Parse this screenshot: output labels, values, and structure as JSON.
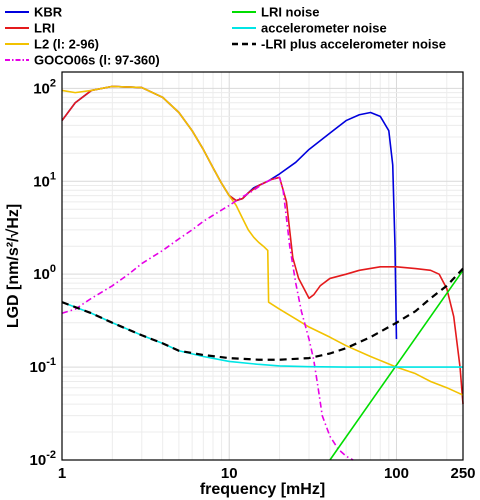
{
  "chart_data": {
    "type": "line",
    "xlabel": "frequency [mHz]",
    "ylabel": "LGD [nm/s²/√Hz]",
    "x_scale": "log",
    "y_scale": "log",
    "xlim": [
      1,
      250
    ],
    "ylim": [
      0.01,
      150
    ],
    "grid": true,
    "x_ticks": [
      {
        "value": 1,
        "label": "1"
      },
      {
        "value": 10,
        "label": "10"
      },
      {
        "value": 100,
        "label": "100"
      },
      {
        "value": 250,
        "label": "250"
      }
    ],
    "y_ticks": [
      {
        "value": 0.01,
        "base": "10",
        "exp": "-2"
      },
      {
        "value": 0.1,
        "base": "10",
        "exp": "-1"
      },
      {
        "value": 1,
        "base": "10",
        "exp": "0"
      },
      {
        "value": 10,
        "base": "10",
        "exp": "1"
      },
      {
        "value": 100,
        "base": "10",
        "exp": "2"
      }
    ],
    "series": [
      {
        "name": "KBR",
        "color": "#0000dd",
        "dash": "solid",
        "points": [
          [
            1,
            45
          ],
          [
            1.2,
            70
          ],
          [
            1.5,
            95
          ],
          [
            2,
            105
          ],
          [
            3,
            102
          ],
          [
            4,
            80
          ],
          [
            5,
            55
          ],
          [
            6,
            35
          ],
          [
            7,
            22
          ],
          [
            8,
            14
          ],
          [
            9,
            9.5
          ],
          [
            10,
            7
          ],
          [
            11,
            6.2
          ],
          [
            12,
            6.5
          ],
          [
            13,
            7.5
          ],
          [
            14,
            8.5
          ],
          [
            15,
            9
          ],
          [
            17,
            10
          ],
          [
            20,
            12
          ],
          [
            25,
            16
          ],
          [
            30,
            22
          ],
          [
            40,
            33
          ],
          [
            50,
            45
          ],
          [
            60,
            52
          ],
          [
            70,
            55
          ],
          [
            80,
            50
          ],
          [
            90,
            35
          ],
          [
            95,
            15
          ],
          [
            98,
            2
          ],
          [
            100,
            0.2
          ]
        ]
      },
      {
        "name": "LRI",
        "color": "#e41a1c",
        "dash": "solid",
        "points": [
          [
            1,
            45
          ],
          [
            1.2,
            70
          ],
          [
            1.5,
            95
          ],
          [
            2,
            105
          ],
          [
            3,
            102
          ],
          [
            4,
            80
          ],
          [
            5,
            55
          ],
          [
            6,
            35
          ],
          [
            7,
            22
          ],
          [
            8,
            14
          ],
          [
            9,
            9.5
          ],
          [
            10,
            7
          ],
          [
            11,
            6.2
          ],
          [
            12,
            6.5
          ],
          [
            13,
            7.5
          ],
          [
            15,
            9
          ],
          [
            18,
            10.5
          ],
          [
            20,
            11
          ],
          [
            22,
            6
          ],
          [
            24,
            1.5
          ],
          [
            26,
            0.9
          ],
          [
            28,
            0.7
          ],
          [
            30,
            0.55
          ],
          [
            32,
            0.6
          ],
          [
            35,
            0.75
          ],
          [
            40,
            0.9
          ],
          [
            50,
            1.0
          ],
          [
            60,
            1.1
          ],
          [
            80,
            1.2
          ],
          [
            100,
            1.2
          ],
          [
            130,
            1.15
          ],
          [
            160,
            1.1
          ],
          [
            180,
            1.0
          ],
          [
            200,
            0.7
          ],
          [
            220,
            0.35
          ],
          [
            240,
            0.1
          ],
          [
            250,
            0.04
          ]
        ]
      },
      {
        "name": "L2 (l: 2-96)",
        "color": "#f2c200",
        "dash": "solid",
        "points": [
          [
            1,
            95
          ],
          [
            1.2,
            90
          ],
          [
            1.5,
            95
          ],
          [
            2,
            105
          ],
          [
            3,
            102
          ],
          [
            4,
            80
          ],
          [
            5,
            55
          ],
          [
            6,
            35
          ],
          [
            7,
            22
          ],
          [
            8,
            14
          ],
          [
            9,
            9.5
          ],
          [
            10,
            7
          ],
          [
            11,
            5.5
          ],
          [
            12,
            4
          ],
          [
            13,
            3
          ],
          [
            14,
            2.5
          ],
          [
            15,
            2.2
          ],
          [
            16,
            2.0
          ],
          [
            17,
            1.8
          ],
          [
            17.2,
            0.5
          ],
          [
            20,
            0.42
          ],
          [
            25,
            0.33
          ],
          [
            30,
            0.27
          ],
          [
            40,
            0.21
          ],
          [
            50,
            0.17
          ],
          [
            70,
            0.13
          ],
          [
            100,
            0.1
          ],
          [
            130,
            0.085
          ],
          [
            160,
            0.07
          ],
          [
            200,
            0.06
          ],
          [
            250,
            0.05
          ]
        ]
      },
      {
        "name": "GOCO06s (l: 97-360)",
        "color": "#e600e6",
        "dash": "dashdot",
        "points": [
          [
            1,
            0.38
          ],
          [
            1.2,
            0.42
          ],
          [
            1.5,
            0.55
          ],
          [
            2,
            0.75
          ],
          [
            2.5,
            1.0
          ],
          [
            3,
            1.3
          ],
          [
            4,
            1.8
          ],
          [
            5,
            2.4
          ],
          [
            6,
            3.0
          ],
          [
            7,
            3.7
          ],
          [
            8,
            4.3
          ],
          [
            10,
            5.5
          ],
          [
            12,
            6.8
          ],
          [
            14,
            8.0
          ],
          [
            16,
            9.5
          ],
          [
            18,
            10.5
          ],
          [
            20,
            11
          ],
          [
            21,
            8
          ],
          [
            22,
            4
          ],
          [
            23,
            2
          ],
          [
            25,
            0.8
          ],
          [
            27,
            0.4
          ],
          [
            30,
            0.2
          ],
          [
            32,
            0.12
          ],
          [
            34,
            0.06
          ],
          [
            36,
            0.03
          ],
          [
            40,
            0.018
          ],
          [
            45,
            0.013
          ],
          [
            50,
            0.011
          ],
          [
            55,
            0.01
          ]
        ]
      },
      {
        "name": "LRI noise",
        "color": "#00dd00",
        "dash": "solid",
        "points": [
          [
            40,
            0.01
          ],
          [
            250,
            1.1
          ]
        ]
      },
      {
        "name": "accelerometer noise",
        "color": "#00e5e5",
        "dash": "solid",
        "points": [
          [
            1,
            0.5
          ],
          [
            1.5,
            0.38
          ],
          [
            2,
            0.3
          ],
          [
            3,
            0.22
          ],
          [
            4,
            0.18
          ],
          [
            5,
            0.15
          ],
          [
            7,
            0.13
          ],
          [
            10,
            0.115
          ],
          [
            15,
            0.107
          ],
          [
            20,
            0.103
          ],
          [
            30,
            0.101
          ],
          [
            50,
            0.1
          ],
          [
            100,
            0.1
          ],
          [
            250,
            0.1
          ]
        ]
      },
      {
        "name": "-LRI plus accelerometer noise",
        "color": "#000000",
        "dash": "dashed",
        "points": [
          [
            1,
            0.5
          ],
          [
            1.5,
            0.38
          ],
          [
            2,
            0.3
          ],
          [
            3,
            0.22
          ],
          [
            4,
            0.18
          ],
          [
            5,
            0.15
          ],
          [
            7,
            0.135
          ],
          [
            10,
            0.125
          ],
          [
            15,
            0.12
          ],
          [
            20,
            0.12
          ],
          [
            30,
            0.125
          ],
          [
            40,
            0.14
          ],
          [
            50,
            0.16
          ],
          [
            70,
            0.21
          ],
          [
            100,
            0.3
          ],
          [
            130,
            0.4
          ],
          [
            160,
            0.55
          ],
          [
            200,
            0.75
          ],
          [
            250,
            1.15
          ]
        ]
      }
    ],
    "legend_placement": "top"
  }
}
